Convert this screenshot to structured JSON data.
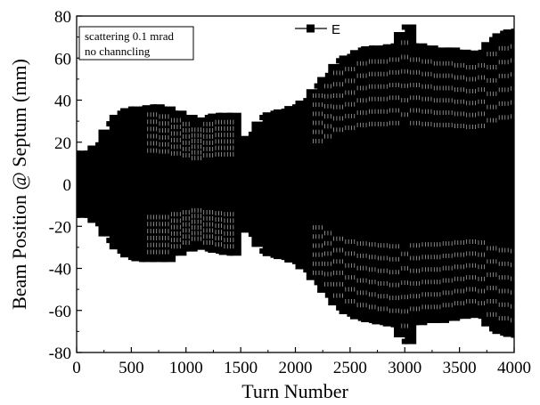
{
  "chart_data": {
    "type": "scatter",
    "title": "",
    "xlabel": "Turn Number",
    "ylabel": "Beam Position @ Septum (mm)",
    "xlim": [
      0,
      4000
    ],
    "ylim": [
      -80,
      80
    ],
    "xticks": [
      0,
      500,
      1000,
      1500,
      2000,
      2500,
      3000,
      3500,
      4000
    ],
    "yticks": [
      -80,
      -60,
      -40,
      -20,
      0,
      20,
      40,
      60,
      80
    ],
    "grid": false,
    "legend": {
      "position": "top-center",
      "entries": [
        "E"
      ]
    },
    "annotation": {
      "lines": [
        "scattering 0.1 mrad",
        "no channcling"
      ],
      "position": "top-left"
    },
    "series": [
      {
        "name": "E",
        "color": "#000000",
        "marker": "square",
        "envelope": {
          "x": [
            0,
            100,
            200,
            300,
            400,
            500,
            600,
            700,
            800,
            900,
            1000,
            1100,
            1200,
            1300,
            1400,
            1500,
            1600,
            1700,
            1800,
            1900,
            2000,
            2100,
            2200,
            2300,
            2400,
            2500,
            2600,
            2700,
            2800,
            2900,
            3000,
            3100,
            3200,
            3300,
            3400,
            3500,
            3600,
            3700,
            3800,
            3900,
            4000
          ],
          "upper": [
            16,
            16,
            20,
            30,
            35,
            37,
            37,
            38,
            37,
            35,
            33,
            30,
            33,
            34,
            34,
            20,
            25,
            33,
            35,
            36,
            38,
            41,
            48,
            53,
            60,
            62,
            65,
            66,
            66,
            67,
            76,
            67,
            66,
            65,
            65,
            64,
            63,
            64,
            70,
            73,
            74
          ],
          "lower": [
            -16,
            -16,
            -20,
            -28,
            -33,
            -36,
            -37,
            -37,
            -37,
            -34,
            -32,
            -30,
            -32,
            -33,
            -34,
            -20,
            -25,
            -33,
            -35,
            -36,
            -38,
            -42,
            -48,
            -54,
            -60,
            -63,
            -65,
            -66,
            -67,
            -68,
            -76,
            -67,
            -66,
            -66,
            -65,
            -64,
            -63,
            -64,
            -70,
            -72,
            -73
          ]
        }
      }
    ]
  }
}
